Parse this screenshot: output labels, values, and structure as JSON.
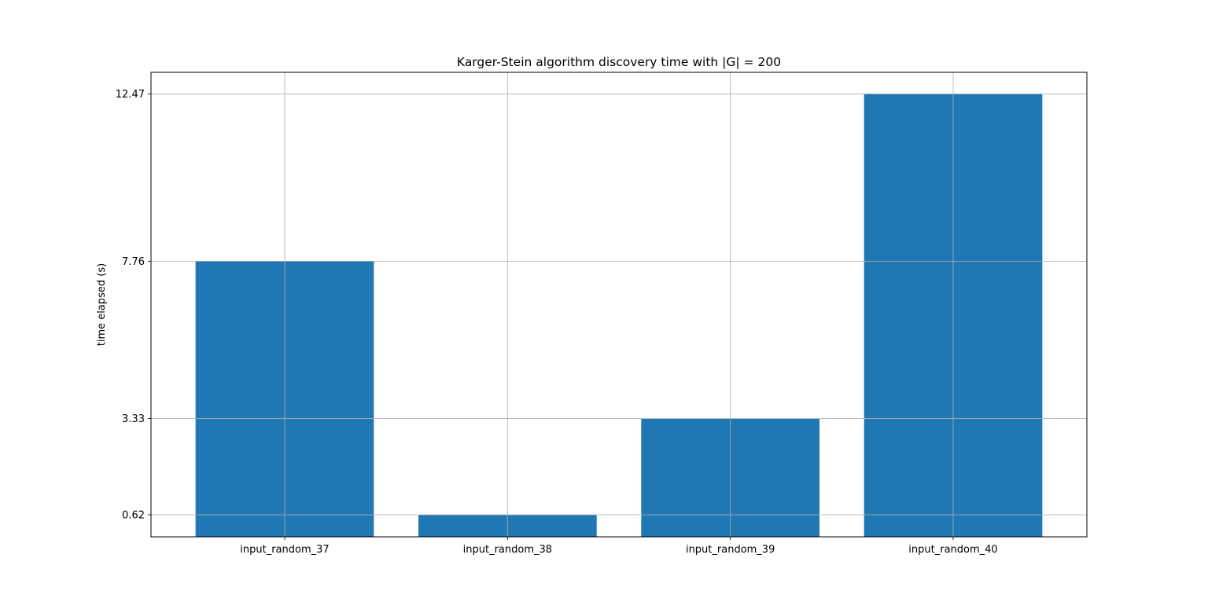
{
  "chart_data": {
    "type": "bar",
    "title": "Karger-Stein algorithm discovery time with |G| = 200",
    "xlabel": "",
    "ylabel": "time elapsed (s)",
    "categories": [
      "input_random_37",
      "input_random_38",
      "input_random_39",
      "input_random_40"
    ],
    "values": [
      7.76,
      0.62,
      3.33,
      12.47
    ],
    "yticks": [
      "0.62",
      "3.33",
      "7.76",
      "12.47"
    ],
    "ylim": [
      0,
      13.08
    ],
    "grid": true,
    "bar_color": "#1f77b4",
    "grid_color": "#b0b0b0"
  }
}
